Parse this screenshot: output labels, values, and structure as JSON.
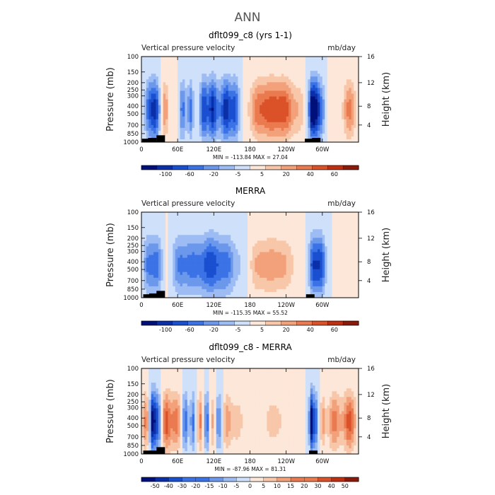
{
  "figure_title": "ANN",
  "colors": {
    "neg": [
      "#00107a",
      "#0a2fa8",
      "#1a4fd0",
      "#3b73e6",
      "#6c98ec",
      "#9dbcf3",
      "#cfe0fa"
    ],
    "pos": [
      "#fde7d9",
      "#f8c7a9",
      "#f2a17a",
      "#ea7a4f",
      "#db5128",
      "#bf3012",
      "#8c1a0a"
    ],
    "land": "#000000"
  },
  "chart_data": [
    {
      "type": "heatmap",
      "title": "dflt099_c8 (yrs 1-1)",
      "left_label": "Vertical pressure velocity",
      "right_label": "mb/day",
      "ylabel": "Pressure (mb)",
      "ylabel_right": "Height (km)",
      "x_ticks": [
        "0",
        "60E",
        "120E",
        "180",
        "120W",
        "60W"
      ],
      "y_ticks": [
        "100",
        "150",
        "200",
        "250",
        "300",
        "400",
        "500",
        "700",
        "850",
        "1000"
      ],
      "y_right_ticks": [
        "16",
        "12",
        "8",
        "4"
      ],
      "min_label": "MIN = -113.84",
      "max_label": "MAX =  27.04",
      "colorbar_labels": [
        "-100",
        "-60",
        "-20",
        "-5",
        "5",
        "20",
        "40",
        "60"
      ],
      "colorbar_bins": 14,
      "bands": [
        {
          "lon": 10,
          "w": 5,
          "v": -2
        },
        {
          "lon": 22,
          "w": 8,
          "v": -6
        },
        {
          "lon": 38,
          "w": 5,
          "v": 4
        },
        {
          "lon": 55,
          "w": 6,
          "v": 1
        },
        {
          "lon": 68,
          "w": 5,
          "v": -4
        },
        {
          "lon": 82,
          "w": 4,
          "v": -4
        },
        {
          "lon": 95,
          "w": 6,
          "v": 1
        },
        {
          "lon": 103,
          "w": 6,
          "v": -6
        },
        {
          "lon": 118,
          "w": 5,
          "v": -6
        },
        {
          "lon": 128,
          "w": 5,
          "v": -2
        },
        {
          "lon": 140,
          "w": 6,
          "v": -6
        },
        {
          "lon": 155,
          "w": 6,
          "v": -5
        },
        {
          "lon": 172,
          "w": 6,
          "v": 0
        },
        {
          "lon": 190,
          "w": 10,
          "v": 3
        },
        {
          "lon": 215,
          "w": 14,
          "v": 5
        },
        {
          "lon": 240,
          "w": 10,
          "v": 4
        },
        {
          "lon": 262,
          "w": 8,
          "v": 2
        },
        {
          "lon": 282,
          "w": 4,
          "v": -6
        },
        {
          "lon": 290,
          "w": 5,
          "v": -6
        },
        {
          "lon": 300,
          "w": 5,
          "v": -3
        },
        {
          "lon": 315,
          "w": 8,
          "v": 1
        },
        {
          "lon": 345,
          "w": 8,
          "v": 4
        }
      ],
      "topo": [
        {
          "lon": 8,
          "h": 0.04
        },
        {
          "lon": 18,
          "h": 0.05
        },
        {
          "lon": 32,
          "h": 0.08
        },
        {
          "lon": 278,
          "h": 0.04
        },
        {
          "lon": 290,
          "h": 0.05
        }
      ]
    },
    {
      "type": "heatmap",
      "title": "MERRA",
      "left_label": "Vertical pressure velocity",
      "right_label": "mb/day",
      "ylabel": "Pressure (mb)",
      "ylabel_right": "Height (km)",
      "x_ticks": [
        "0",
        "60E",
        "120E",
        "180",
        "120W",
        "60W"
      ],
      "y_ticks": [
        "100",
        "150",
        "200",
        "250",
        "300",
        "400",
        "500",
        "700",
        "850",
        "1000"
      ],
      "y_right_ticks": [
        "16",
        "12",
        "8",
        "4"
      ],
      "min_label": "MIN = -115.35",
      "max_label": "MAX =  55.52",
      "colorbar_labels": [
        "-100",
        "-60",
        "-20",
        "-5",
        "5",
        "20",
        "40",
        "60"
      ],
      "colorbar_bins": 14,
      "bands": [
        {
          "lon": 10,
          "w": 6,
          "v": -3
        },
        {
          "lon": 25,
          "w": 8,
          "v": -4
        },
        {
          "lon": 42,
          "w": 5,
          "v": 1
        },
        {
          "lon": 60,
          "w": 8,
          "v": -2
        },
        {
          "lon": 85,
          "w": 18,
          "v": -4
        },
        {
          "lon": 115,
          "w": 10,
          "v": -4
        },
        {
          "lon": 140,
          "w": 12,
          "v": -4
        },
        {
          "lon": 165,
          "w": 8,
          "v": -1
        },
        {
          "lon": 190,
          "w": 10,
          "v": 2
        },
        {
          "lon": 215,
          "w": 14,
          "v": 3
        },
        {
          "lon": 240,
          "w": 10,
          "v": 2
        },
        {
          "lon": 262,
          "w": 8,
          "v": 1
        },
        {
          "lon": 285,
          "w": 6,
          "v": -5
        },
        {
          "lon": 298,
          "w": 6,
          "v": -5
        },
        {
          "lon": 315,
          "w": 8,
          "v": 0
        },
        {
          "lon": 345,
          "w": 10,
          "v": 1
        }
      ],
      "topo": [
        {
          "lon": 10,
          "h": 0.04
        },
        {
          "lon": 20,
          "h": 0.05
        },
        {
          "lon": 32,
          "h": 0.08
        },
        {
          "lon": 280,
          "h": 0.04
        }
      ]
    },
    {
      "type": "heatmap",
      "title": "dflt099_c8 - MERRA",
      "left_label": "Vertical pressure velocity",
      "right_label": "mb/day",
      "ylabel": "Pressure (mb)",
      "ylabel_right": "Height (km)",
      "x_ticks": [
        "0",
        "60E",
        "120E",
        "180",
        "120W",
        "60W"
      ],
      "y_ticks": [
        "100",
        "150",
        "200",
        "250",
        "300",
        "400",
        "500",
        "700",
        "850",
        "1000"
      ],
      "y_right_ticks": [
        "16",
        "12",
        "8",
        "4"
      ],
      "min_label": "MIN = -87.96",
      "max_label": "MAX =  81.31",
      "colorbar_labels": [
        "-50",
        "-40",
        "-30",
        "-20",
        "-15",
        "-10",
        "-5",
        "0",
        "5",
        "10",
        "15",
        "20",
        "30",
        "40",
        "50"
      ],
      "colorbar_bins": 16,
      "bands": [
        {
          "lon": 8,
          "w": 5,
          "v": 4
        },
        {
          "lon": 18,
          "w": 4,
          "v": -7
        },
        {
          "lon": 28,
          "w": 5,
          "v": -5
        },
        {
          "lon": 40,
          "w": 6,
          "v": 5
        },
        {
          "lon": 58,
          "w": 8,
          "v": 4
        },
        {
          "lon": 72,
          "w": 4,
          "v": -5
        },
        {
          "lon": 86,
          "w": 4,
          "v": -4
        },
        {
          "lon": 98,
          "w": 5,
          "v": 4
        },
        {
          "lon": 108,
          "w": 4,
          "v": -5
        },
        {
          "lon": 118,
          "w": 4,
          "v": 3
        },
        {
          "lon": 128,
          "w": 4,
          "v": -4
        },
        {
          "lon": 142,
          "w": 6,
          "v": 3
        },
        {
          "lon": 160,
          "w": 8,
          "v": 2
        },
        {
          "lon": 190,
          "w": 10,
          "v": 1
        },
        {
          "lon": 220,
          "w": 14,
          "v": 2
        },
        {
          "lon": 255,
          "w": 10,
          "v": 1
        },
        {
          "lon": 282,
          "w": 3,
          "v": -7
        },
        {
          "lon": 290,
          "w": 4,
          "v": -4
        },
        {
          "lon": 300,
          "w": 4,
          "v": 3
        },
        {
          "lon": 320,
          "w": 8,
          "v": 4
        },
        {
          "lon": 345,
          "w": 8,
          "v": 5
        }
      ],
      "topo": [
        {
          "lon": 10,
          "h": 0.04
        },
        {
          "lon": 20,
          "h": 0.04
        },
        {
          "lon": 32,
          "h": 0.08
        },
        {
          "lon": 285,
          "h": 0.04
        }
      ]
    }
  ]
}
